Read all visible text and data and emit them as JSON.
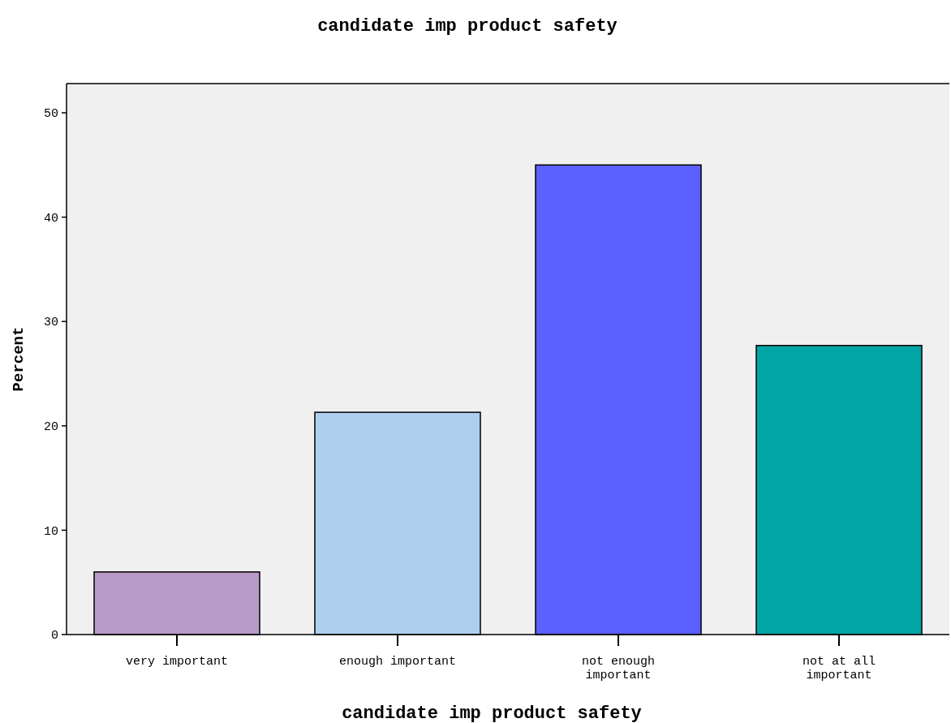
{
  "chart_data": {
    "type": "bar",
    "title": "candidate imp product safety",
    "xlabel": "candidate imp product safety",
    "ylabel": "Percent",
    "categories": [
      "very important",
      "enough important",
      "not enough important",
      "not at all important"
    ],
    "values": [
      6.0,
      21.3,
      45.0,
      27.7
    ],
    "colors": [
      "#b89ac8",
      "#aecfee",
      "#5b60ff",
      "#00a6a6"
    ],
    "ylim": [
      0,
      52.8
    ],
    "yticks": [
      0,
      10,
      20,
      30,
      40,
      50
    ],
    "grid": false
  }
}
